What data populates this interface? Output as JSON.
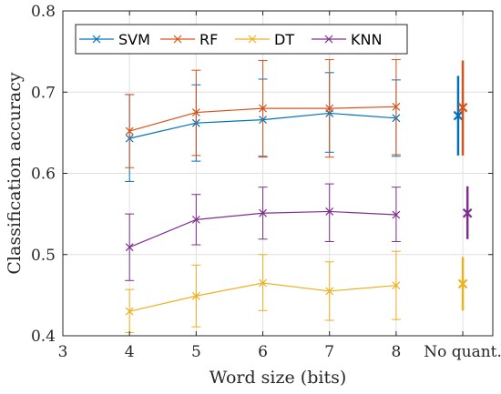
{
  "chart_data": {
    "type": "line",
    "xlabel": "Word size (bits)",
    "ylabel": "Classification accuracy",
    "xlim": [
      3,
      9.45
    ],
    "ylim": [
      0.4,
      0.8
    ],
    "x_ticks": [
      3,
      4,
      5,
      6,
      7,
      8,
      9
    ],
    "x_tick_labels": [
      "3",
      "4",
      "5",
      "6",
      "7",
      "8",
      "No quant."
    ],
    "y_ticks": [
      0.4,
      0.5,
      0.6,
      0.7,
      0.8
    ],
    "y_tick_labels": [
      "0.4",
      "0.5",
      "0.6",
      "0.7",
      "0.8"
    ],
    "grid": true,
    "legend_position": "top-left",
    "x": [
      4,
      5,
      6,
      7,
      8
    ],
    "series": [
      {
        "name": "SVM",
        "color": "#0072BD",
        "values": [
          0.643,
          0.662,
          0.666,
          0.674,
          0.668
        ],
        "err_low": [
          0.59,
          0.615,
          0.621,
          0.626,
          0.621
        ],
        "err_high": [
          0.697,
          0.709,
          0.716,
          0.724,
          0.715
        ],
        "no_quant": {
          "x": 8.93,
          "value": 0.671,
          "err_low": 0.622,
          "err_high": 0.72
        }
      },
      {
        "name": "RF",
        "color": "#D95319",
        "values": [
          0.652,
          0.675,
          0.68,
          0.68,
          0.682
        ],
        "err_low": [
          0.607,
          0.622,
          0.62,
          0.62,
          0.623
        ],
        "err_high": [
          0.697,
          0.727,
          0.739,
          0.74,
          0.74
        ],
        "no_quant": {
          "x": 9.0,
          "value": 0.681,
          "err_low": 0.622,
          "err_high": 0.739
        }
      },
      {
        "name": "DT",
        "color": "#EDB120",
        "values": [
          0.43,
          0.449,
          0.465,
          0.455,
          0.462
        ],
        "err_low": [
          0.404,
          0.411,
          0.431,
          0.419,
          0.42
        ],
        "err_high": [
          0.457,
          0.487,
          0.5,
          0.491,
          0.504
        ],
        "no_quant": {
          "x": 9.0,
          "value": 0.464,
          "err_low": 0.431,
          "err_high": 0.497
        }
      },
      {
        "name": "KNN",
        "color": "#7E2F8E",
        "values": [
          0.509,
          0.543,
          0.551,
          0.553,
          0.549
        ],
        "err_low": [
          0.468,
          0.512,
          0.519,
          0.516,
          0.516
        ],
        "err_high": [
          0.55,
          0.574,
          0.583,
          0.587,
          0.583
        ],
        "no_quant": {
          "x": 9.07,
          "value": 0.551,
          "err_low": 0.519,
          "err_high": 0.584
        }
      }
    ]
  }
}
